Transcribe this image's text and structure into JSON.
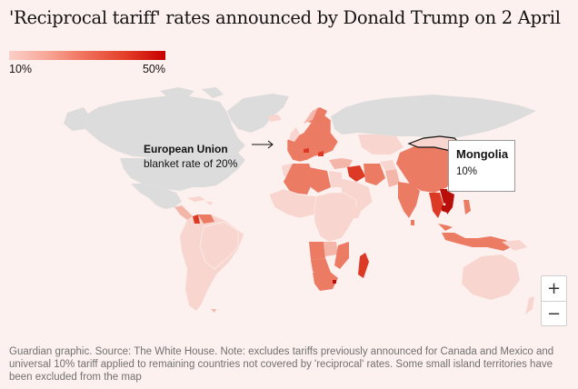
{
  "title": "'Reciprocal tariff' rates announced by Donald Trump on 2 April",
  "legend": {
    "min_label": "10%",
    "max_label": "50%",
    "color_low": "#fbd0c8",
    "color_high": "#c70000"
  },
  "colors": {
    "background": "#fdf1ef",
    "no_data_land": "#dcdcdc",
    "tariff_10": "#f8d6cf",
    "tariff_low": "#f4b6a9",
    "tariff_mid": "#ec7b64",
    "tariff_high": "#dd3a26",
    "tariff_max": "#b80f0a"
  },
  "annotation": {
    "name": "European Union",
    "text": "blanket rate of 20%"
  },
  "tooltip": {
    "country": "Mongolia",
    "value": "10%"
  },
  "zoom": {
    "in_label": "+",
    "out_label": "−"
  },
  "footer": "Guardian graphic. Source: The White House. Note: excludes tariffs previously announced for Canada and Mexico and universal 10% tariff applied to remaining countries not covered by 'reciprocal' rates. Some small island territories have been excluded from the map"
}
